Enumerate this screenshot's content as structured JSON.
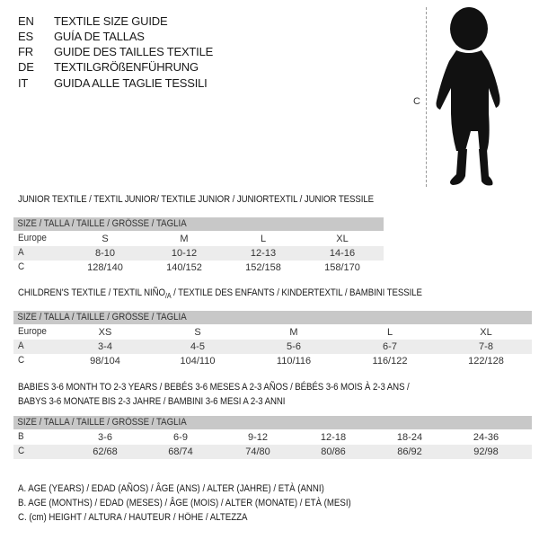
{
  "languages": [
    {
      "code": "EN",
      "title": "TEXTILE SIZE GUIDE"
    },
    {
      "code": "ES",
      "title": "GUÍA DE TALLAS"
    },
    {
      "code": "FR",
      "title": "GUIDE DES TAILLES TEXTILE"
    },
    {
      "code": "DE",
      "title": "TEXTILGRÖßENFÜHRUNG"
    },
    {
      "code": "IT",
      "title": "GUIDA ALLE TAGLIE TESSILI"
    }
  ],
  "figure": {
    "measure_label": "C",
    "icon": "child-silhouette"
  },
  "junior": {
    "title": "JUNIOR TEXTILE / TEXTIL JUNIOR/ TEXTILE JUNIOR / JUNIORTEXTIL / JUNIOR TESSILE",
    "header": "SIZE / TALLA / TAILLE / GRÖSSE / TAGLIA",
    "rows": [
      {
        "label": "Europe",
        "cells": [
          "S",
          "M",
          "L",
          "XL"
        ]
      },
      {
        "label": "A",
        "cells": [
          "8-10",
          "10-12",
          "12-13",
          "14-16"
        ]
      },
      {
        "label": "C",
        "cells": [
          "128/140",
          "140/152",
          "152/158",
          "158/170"
        ]
      }
    ]
  },
  "children": {
    "title_pre": "CHILDREN'S TEXTILE / TEXTIL NIÑO",
    "title_sub": "/A",
    "title_post": " / TEXTILE DES ENFANTS / KINDERTEXTIL / BAMBINI TESSILE",
    "header": "SIZE / TALLA / TAILLE / GRÖSSE / TAGLIA",
    "rows": [
      {
        "label": "Europe",
        "cells": [
          "XS",
          "S",
          "M",
          "L",
          "XL"
        ]
      },
      {
        "label": "A",
        "cells": [
          "3-4",
          "4-5",
          "5-6",
          "6-7",
          "7-8"
        ]
      },
      {
        "label": "C",
        "cells": [
          "98/104",
          "104/110",
          "110/116",
          "116/122",
          "122/128"
        ]
      }
    ]
  },
  "babies": {
    "title_line1": "BABIES 3-6 MONTH TO 2-3 YEARS / BEBÉS 3-6 MESES A 2-3 AÑOS / BÉBÉS 3-6 MOIS À 2-3 ANS /",
    "title_line2": "BABYS 3-6 MONATE BIS 2-3 JAHRE / BAMBINI 3-6 MESI A 2-3 ANNI",
    "header": "SIZE / TALLA / TAILLE / GRÖSSE / TAGLIA",
    "rows": [
      {
        "label": "B",
        "cells": [
          "3-6",
          "6-9",
          "9-12",
          "12-18",
          "18-24",
          "24-36"
        ]
      },
      {
        "label": "C",
        "cells": [
          "62/68",
          "68/74",
          "74/80",
          "80/86",
          "86/92",
          "92/98"
        ]
      }
    ]
  },
  "legend": [
    "A. AGE (YEARS) / EDAD (AÑOS) / ÂGE (ANS) / ALTER (JAHRE) / ETÀ (ANNI)",
    "B. AGE (MONTHS) / EDAD (MESES) / ÂGE (MOIS) / ALTER (MONATE) / ETÀ (MESI)",
    "C. (cm) HEIGHT / ALTURA / HAUTEUR / HÖHE / ALTEZZA"
  ]
}
